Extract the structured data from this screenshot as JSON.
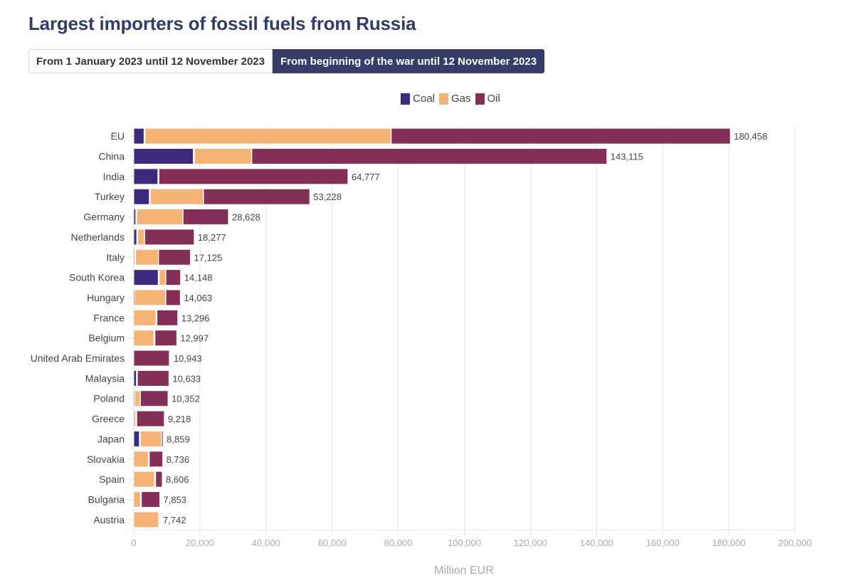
{
  "header": {
    "title": "Largest importers of fossil fuels from Russia"
  },
  "toggle": {
    "options": [
      {
        "label": "From 1 January 2023 until 12 November 2023",
        "active": false
      },
      {
        "label": "From beginning of the war until 12 November 2023",
        "active": true
      }
    ]
  },
  "colors": {
    "coal": "#3d2a7d",
    "gas": "#f5b375",
    "oil": "#832f58",
    "title": "#333c66",
    "button_active": "#353e69"
  },
  "chart_data": {
    "type": "bar",
    "orientation": "horizontal",
    "stacked": true,
    "title": "Largest importers of fossil fuels from Russia",
    "xlabel": "Million EUR",
    "ylabel": "",
    "xlim": [
      0,
      200000
    ],
    "xticks": [
      0,
      20000,
      40000,
      60000,
      80000,
      100000,
      120000,
      140000,
      160000,
      180000,
      200000
    ],
    "xtick_labels": [
      "0",
      "20,000",
      "40,000",
      "60,000",
      "80,000",
      "100,000",
      "120,000",
      "140,000",
      "160,000",
      "180,000",
      "200,000"
    ],
    "grid": true,
    "legend_position": "top-center",
    "legend": [
      "Coal",
      "Gas",
      "Oil"
    ],
    "categories": [
      "EU",
      "China",
      "India",
      "Turkey",
      "Germany",
      "Netherlands",
      "Italy",
      "South Korea",
      "Hungary",
      "France",
      "Belgium",
      "United Arab Emirates",
      "Malaysia",
      "Poland",
      "Greece",
      "Japan",
      "Slovakia",
      "Spain",
      "Bulgaria",
      "Austria"
    ],
    "series": [
      {
        "name": "Coal",
        "color": "#3d2a7d",
        "values": [
          3300,
          18200,
          7500,
          4900,
          800,
          1100,
          400,
          7600,
          100,
          0,
          0,
          0,
          1000,
          200,
          0,
          1900,
          0,
          0,
          0,
          0
        ]
      },
      {
        "name": "Gas",
        "color": "#f5b375",
        "values": [
          74500,
          17400,
          0,
          16100,
          14000,
          2100,
          7000,
          2000,
          9500,
          6900,
          6300,
          0,
          0,
          1700,
          800,
          6400,
          4600,
          6500,
          2200,
          7742
        ]
      },
      {
        "name": "Oil",
        "color": "#832f58",
        "values": [
          102658,
          107515,
          57277,
          32228,
          13828,
          15077,
          9725,
          4548,
          4463,
          6396,
          6697,
          10943,
          9633,
          8452,
          8418,
          559,
          4136,
          2106,
          5653,
          0
        ]
      }
    ],
    "totals": [
      180458,
      143115,
      64777,
      53228,
      28628,
      18277,
      17125,
      14148,
      14063,
      13296,
      12997,
      10943,
      10633,
      10352,
      9218,
      8859,
      8736,
      8606,
      7853,
      7742
    ],
    "total_labels": [
      "180,458",
      "143,115",
      "64,777",
      "53,228",
      "28,628",
      "18,277",
      "17,125",
      "14,148",
      "14,063",
      "13,296",
      "12,997",
      "10,943",
      "10,633",
      "10,352",
      "9,218",
      "8,859",
      "8,736",
      "8,606",
      "7,853",
      "7,742"
    ]
  }
}
